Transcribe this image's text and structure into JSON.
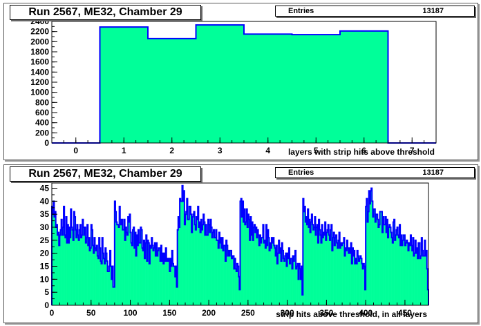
{
  "chart_data": [
    {
      "type": "bar",
      "title": "Run 2567, ME32, Chamber 29",
      "stats_label": "Entries",
      "stats_value": "13187",
      "xlabel": "layers with strip hits above threshold",
      "ylabel": "",
      "xlim": [
        -0.5,
        7.5
      ],
      "ylim": [
        0,
        2400
      ],
      "xticks": [
        0,
        1,
        2,
        3,
        4,
        5,
        6,
        7
      ],
      "yticks": [
        0,
        200,
        400,
        600,
        800,
        1000,
        1200,
        1400,
        1600,
        1800,
        2000,
        2200,
        2400
      ],
      "bin_edges": [
        -0.5,
        0.5,
        1.5,
        2.5,
        3.5,
        4.5,
        5.5,
        6.5,
        7.5
      ],
      "values": [
        0,
        2290,
        2060,
        2330,
        2150,
        2140,
        2210,
        0
      ],
      "fill_color": "#00ff99",
      "line_color": "#0000ff"
    },
    {
      "type": "bar",
      "title": "Run 2567, ME32, Chamber 29",
      "stats_label": "Entries",
      "stats_value": "13187",
      "xlabel": "strip hits above threshold, in all layers",
      "ylabel": "",
      "xlim": [
        0,
        480
      ],
      "ylim": [
        0,
        47
      ],
      "xticks": [
        0,
        50,
        100,
        150,
        200,
        250,
        300,
        350,
        400,
        450
      ],
      "yticks": [
        0,
        5,
        10,
        15,
        20,
        25,
        30,
        35,
        40,
        45
      ],
      "bin_start": 0,
      "bin_width": 1,
      "values": [
        38,
        35,
        40,
        34,
        36,
        30,
        31,
        27,
        28,
        23,
        27,
        29,
        33,
        27,
        30,
        38,
        27,
        26,
        34,
        24,
        31,
        24,
        30,
        26,
        37,
        30,
        29,
        25,
        36,
        34,
        29,
        26,
        31,
        27,
        25,
        29,
        31,
        26,
        27,
        33,
        30,
        27,
        30,
        24,
        26,
        31,
        23,
        26,
        21,
        22,
        31,
        29,
        23,
        20,
        26,
        22,
        21,
        23,
        19,
        18,
        26,
        22,
        17,
        16,
        26,
        20,
        18,
        16,
        22,
        20,
        17,
        13,
        13,
        15,
        21,
        15,
        10,
        15,
        7,
        7,
        40,
        36,
        32,
        31,
        31,
        30,
        38,
        33,
        31,
        33,
        29,
        29,
        33,
        25,
        30,
        28,
        27,
        34,
        32,
        35,
        28,
        24,
        23,
        29,
        30,
        22,
        28,
        19,
        27,
        23,
        29,
        24,
        24,
        30,
        29,
        22,
        21,
        25,
        18,
        24,
        27,
        17,
        25,
        24,
        16,
        23,
        22,
        26,
        23,
        21,
        22,
        24,
        19,
        24,
        19,
        21,
        22,
        22,
        17,
        23,
        17,
        20,
        16,
        20,
        17,
        22,
        17,
        18,
        17,
        18,
        13,
        18,
        15,
        21,
        16,
        15,
        15,
        11,
        15,
        7,
        29,
        34,
        30,
        41,
        40,
        40,
        46,
        40,
        44,
        31,
        35,
        36,
        41,
        33,
        33,
        38,
        38,
        35,
        28,
        34,
        35,
        36,
        31,
        29,
        34,
        33,
        38,
        30,
        32,
        28,
        33,
        29,
        31,
        35,
        32,
        27,
        31,
        27,
        27,
        33,
        31,
        28,
        33,
        30,
        26,
        28,
        29,
        26,
        26,
        29,
        25,
        25,
        22,
        28,
        24,
        26,
        22,
        26,
        21,
        23,
        23,
        17,
        25,
        23,
        19,
        21,
        19,
        21,
        21,
        18,
        19,
        19,
        14,
        18,
        14,
        13,
        16,
        15,
        11,
        6,
        40,
        41,
        34,
        40,
        32,
        37,
        31,
        32,
        37,
        30,
        35,
        33,
        25,
        34,
        27,
        32,
        25,
        30,
        31,
        28,
        30,
        26,
        29,
        27,
        23,
        27,
        24,
        26,
        26,
        31,
        24,
        25,
        22,
        31,
        23,
        29,
        26,
        21,
        24,
        22,
        26,
        24,
        26,
        23,
        22,
        19,
        23,
        16,
        20,
        25,
        20,
        22,
        17,
        24,
        21,
        18,
        17,
        19,
        20,
        15,
        20,
        18,
        22,
        16,
        18,
        18,
        14,
        19,
        17,
        19,
        21,
        14,
        15,
        16,
        10,
        16,
        14,
        10,
        15,
        4,
        41,
        36,
        38,
        32,
        34,
        31,
        37,
        30,
        33,
        28,
        32,
        35,
        31,
        29,
        30,
        34,
        27,
        30,
        31,
        24,
        33,
        29,
        27,
        24,
        31,
        26,
        28,
        27,
        32,
        25,
        28,
        29,
        31,
        27,
        25,
        29,
        31,
        21,
        26,
        28,
        23,
        26,
        27,
        24,
        22,
        25,
        28,
        22,
        24,
        23,
        24,
        24,
        26,
        19,
        22,
        21,
        25,
        22,
        20,
        22,
        20,
        24,
        16,
        22,
        19,
        21,
        16,
        18,
        16,
        21,
        19,
        17,
        18,
        19,
        18,
        16,
        14,
        16,
        15,
        6,
        38,
        41,
        32,
        36,
        44,
        39,
        44,
        45,
        40,
        34,
        37,
        37,
        32,
        35,
        35,
        33,
        30,
        31,
        36,
        36,
        36,
        28,
        34,
        31,
        31,
        34,
        28,
        33,
        26,
        30,
        31,
        30,
        28,
        26,
        24,
        32,
        33,
        25,
        27,
        29,
        30,
        27,
        26,
        31,
        23,
        27,
        23,
        25,
        27,
        27,
        23,
        24,
        25,
        24,
        21,
        24,
        23,
        27,
        23,
        21,
        26,
        19,
        20,
        25,
        20,
        22,
        18,
        24,
        24,
        18,
        19,
        26,
        21,
        19,
        19,
        25,
        19,
        21,
        14,
        6
      ],
      "fill_color": "#00ff99",
      "line_color": "#0000ff"
    }
  ]
}
